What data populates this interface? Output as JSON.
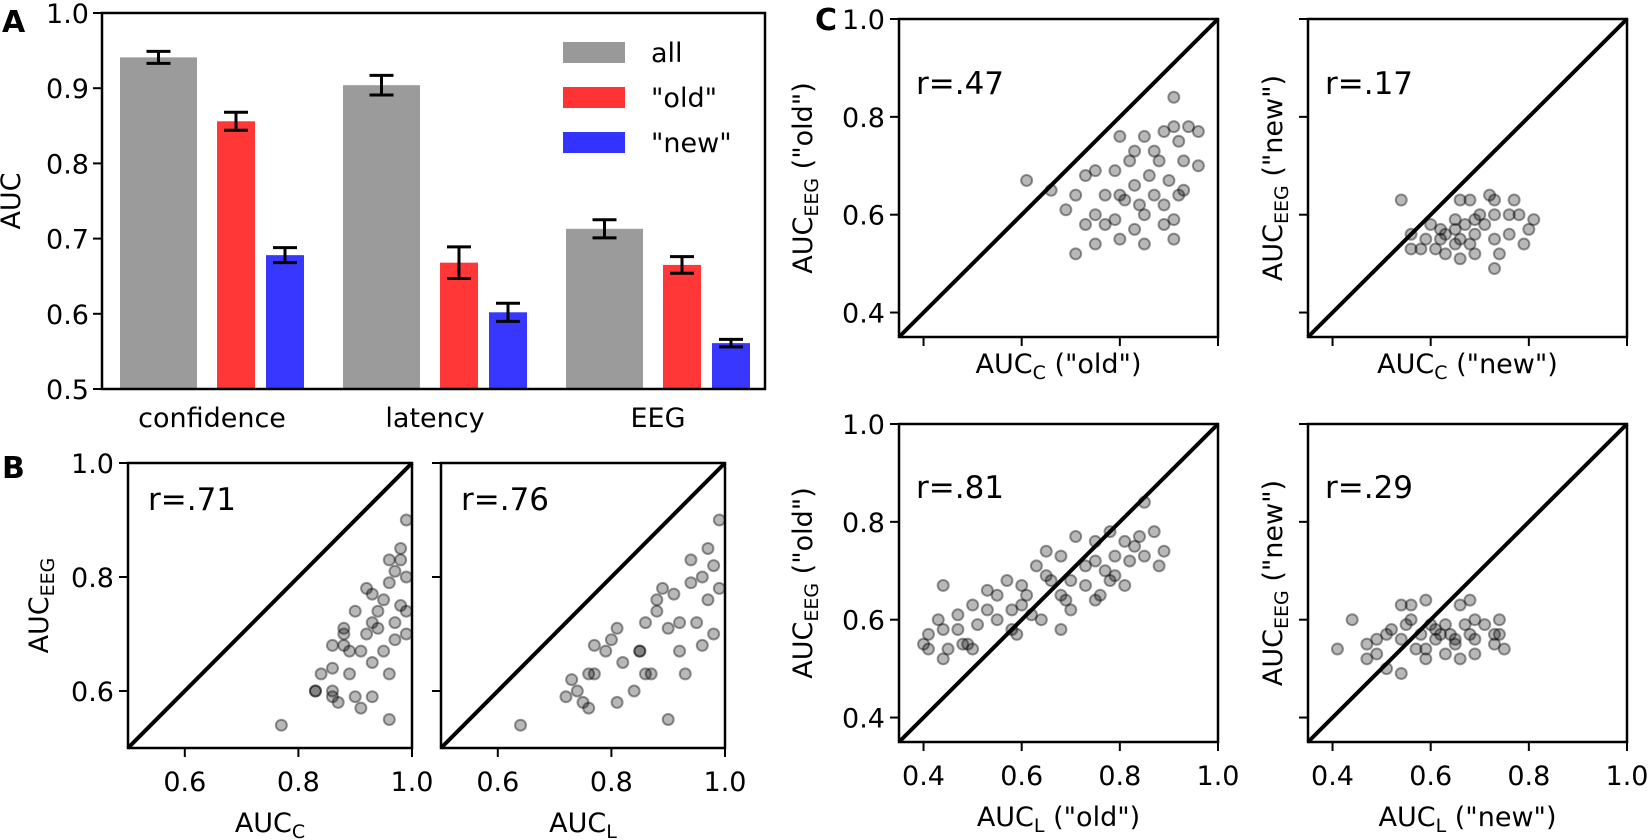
{
  "panels": {
    "A": "A",
    "B": "B",
    "C": "C"
  },
  "chart_data": [
    {
      "id": "A",
      "type": "bar",
      "categories": [
        "confidence",
        "latency",
        "EEG"
      ],
      "series": [
        {
          "name": "all",
          "color": "#999999",
          "values": [
            0.941,
            0.904,
            0.713
          ],
          "errors": [
            0.008,
            0.013,
            0.012
          ]
        },
        {
          "name": "\"old\"",
          "color": "#ff3333",
          "values": [
            0.856,
            0.668,
            0.665
          ],
          "errors": [
            0.012,
            0.021,
            0.011
          ]
        },
        {
          "name": "\"new\"",
          "color": "#3333ff",
          "values": [
            0.678,
            0.602,
            0.561
          ],
          "errors": [
            0.01,
            0.012,
            0.005
          ]
        }
      ],
      "ylabel": "AUC",
      "ylim": [
        0.5,
        1.0
      ],
      "yticks": [
        0.5,
        0.6,
        0.7,
        0.8,
        0.9,
        1.0
      ],
      "ytick_labels": [
        "0.5",
        "0.6",
        "0.7",
        "0.8",
        "0.9",
        "1.0"
      ],
      "legend": "top-right"
    },
    {
      "id": "B1",
      "type": "scatter",
      "r_label": "r=.71",
      "xlabel": {
        "main": "AUC",
        "sub": "C",
        "suffix": ""
      },
      "ylabel": {
        "main": "AUC",
        "sub": "EEG",
        "suffix": ""
      },
      "xlim": [
        0.5,
        1.0
      ],
      "ylim": [
        0.5,
        1.0
      ],
      "xticks": [
        0.6,
        0.8,
        1.0
      ],
      "xtick_labels": [
        "0.6",
        "0.8",
        "1.0"
      ],
      "yticks": [
        0.6,
        0.8,
        1.0
      ],
      "ytick_labels": [
        "0.6",
        "0.8",
        "1.0"
      ],
      "diagonal": true,
      "points": [
        [
          0.77,
          0.54
        ],
        [
          0.83,
          0.6
        ],
        [
          0.83,
          0.6
        ],
        [
          0.86,
          0.59
        ],
        [
          0.86,
          0.6
        ],
        [
          0.87,
          0.58
        ],
        [
          0.84,
          0.63
        ],
        [
          0.86,
          0.64
        ],
        [
          0.86,
          0.68
        ],
        [
          0.88,
          0.68
        ],
        [
          0.88,
          0.7
        ],
        [
          0.88,
          0.71
        ],
        [
          0.89,
          0.63
        ],
        [
          0.9,
          0.59
        ],
        [
          0.91,
          0.57
        ],
        [
          0.93,
          0.59
        ],
        [
          0.96,
          0.55
        ],
        [
          0.96,
          0.63
        ],
        [
          0.95,
          0.67
        ],
        [
          0.93,
          0.65
        ],
        [
          0.91,
          0.67
        ],
        [
          0.9,
          0.74
        ],
        [
          0.92,
          0.78
        ],
        [
          0.93,
          0.77
        ],
        [
          0.95,
          0.76
        ],
        [
          0.96,
          0.83
        ],
        [
          0.98,
          0.85
        ],
        [
          0.99,
          0.9
        ],
        [
          0.97,
          0.72
        ],
        [
          0.98,
          0.75
        ],
        [
          0.99,
          0.8
        ],
        [
          0.99,
          0.7
        ],
        [
          0.97,
          0.69
        ],
        [
          0.94,
          0.71
        ],
        [
          0.93,
          0.72
        ],
        [
          0.97,
          0.81
        ],
        [
          0.98,
          0.83
        ],
        [
          0.99,
          0.74
        ],
        [
          0.96,
          0.79
        ],
        [
          0.94,
          0.74
        ],
        [
          0.92,
          0.7
        ],
        [
          0.89,
          0.67
        ]
      ]
    },
    {
      "id": "B2",
      "type": "scatter",
      "r_label": "r=.76",
      "xlabel": {
        "main": "AUC",
        "sub": "L",
        "suffix": ""
      },
      "ylabel": null,
      "xlim": [
        0.5,
        1.0
      ],
      "ylim": [
        0.5,
        1.0
      ],
      "xticks": [
        0.6,
        0.8,
        1.0
      ],
      "xtick_labels": [
        "0.6",
        "0.8",
        "1.0"
      ],
      "yticks": [
        0.6,
        0.8,
        1.0
      ],
      "ytick_labels": [],
      "diagonal": true,
      "points": [
        [
          0.64,
          0.54
        ],
        [
          0.72,
          0.59
        ],
        [
          0.73,
          0.62
        ],
        [
          0.74,
          0.6
        ],
        [
          0.75,
          0.58
        ],
        [
          0.76,
          0.57
        ],
        [
          0.76,
          0.63
        ],
        [
          0.77,
          0.63
        ],
        [
          0.77,
          0.68
        ],
        [
          0.79,
          0.67
        ],
        [
          0.8,
          0.69
        ],
        [
          0.81,
          0.71
        ],
        [
          0.81,
          0.58
        ],
        [
          0.82,
          0.65
        ],
        [
          0.84,
          0.6
        ],
        [
          0.85,
          0.67
        ],
        [
          0.85,
          0.67
        ],
        [
          0.86,
          0.72
        ],
        [
          0.86,
          0.63
        ],
        [
          0.87,
          0.63
        ],
        [
          0.88,
          0.76
        ],
        [
          0.88,
          0.74
        ],
        [
          0.89,
          0.78
        ],
        [
          0.9,
          0.55
        ],
        [
          0.9,
          0.71
        ],
        [
          0.91,
          0.77
        ],
        [
          0.93,
          0.63
        ],
        [
          0.94,
          0.83
        ],
        [
          0.92,
          0.67
        ],
        [
          0.92,
          0.72
        ],
        [
          0.96,
          0.8
        ],
        [
          0.97,
          0.85
        ],
        [
          0.99,
          0.9
        ],
        [
          0.97,
          0.76
        ],
        [
          0.95,
          0.72
        ],
        [
          0.98,
          0.7
        ],
        [
          0.99,
          0.78
        ],
        [
          0.94,
          0.79
        ],
        [
          0.96,
          0.68
        ],
        [
          0.98,
          0.82
        ]
      ]
    },
    {
      "id": "C1",
      "type": "scatter",
      "r_label": "r=.47",
      "xlabel": {
        "main": "AUC",
        "sub": "C",
        "suffix": " (\"old\")"
      },
      "ylabel": {
        "main": "AUC",
        "sub": "EEG",
        "suffix": "  (\"old\")"
      },
      "xlim": [
        0.35,
        1.0
      ],
      "ylim": [
        0.35,
        1.0
      ],
      "xticks": [
        0.4,
        0.6,
        0.8,
        1.0
      ],
      "xtick_labels": [],
      "yticks": [
        0.4,
        0.6,
        0.8,
        1.0
      ],
      "ytick_labels": [
        "0.4",
        "0.6",
        "0.8",
        "1.0"
      ],
      "diagonal": true,
      "points": [
        [
          0.61,
          0.67
        ],
        [
          0.66,
          0.65
        ],
        [
          0.91,
          0.84
        ],
        [
          0.71,
          0.52
        ],
        [
          0.75,
          0.54
        ],
        [
          0.69,
          0.61
        ],
        [
          0.71,
          0.64
        ],
        [
          0.73,
          0.58
        ],
        [
          0.73,
          0.68
        ],
        [
          0.75,
          0.69
        ],
        [
          0.79,
          0.69
        ],
        [
          0.77,
          0.64
        ],
        [
          0.8,
          0.76
        ],
        [
          0.85,
          0.76
        ],
        [
          0.96,
          0.7
        ],
        [
          0.96,
          0.77
        ],
        [
          0.94,
          0.78
        ],
        [
          0.91,
          0.78
        ],
        [
          0.93,
          0.71
        ],
        [
          0.91,
          0.55
        ],
        [
          0.91,
          0.59
        ],
        [
          0.85,
          0.54
        ],
        [
          0.8,
          0.55
        ],
        [
          0.83,
          0.57
        ],
        [
          0.87,
          0.73
        ],
        [
          0.88,
          0.71
        ],
        [
          0.86,
          0.68
        ],
        [
          0.83,
          0.66
        ],
        [
          0.81,
          0.63
        ],
        [
          0.84,
          0.62
        ],
        [
          0.87,
          0.64
        ],
        [
          0.9,
          0.67
        ],
        [
          0.92,
          0.64
        ],
        [
          0.79,
          0.59
        ],
        [
          0.77,
          0.58
        ],
        [
          0.75,
          0.6
        ],
        [
          0.8,
          0.64
        ],
        [
          0.82,
          0.71
        ],
        [
          0.85,
          0.6
        ],
        [
          0.89,
          0.62
        ],
        [
          0.92,
          0.75
        ],
        [
          0.83,
          0.73
        ],
        [
          0.89,
          0.77
        ],
        [
          0.93,
          0.65
        ],
        [
          0.89,
          0.58
        ]
      ]
    },
    {
      "id": "C2",
      "type": "scatter",
      "r_label": "r=.17",
      "xlabel": {
        "main": "AUC",
        "sub": "C",
        "suffix": " (\"new\")"
      },
      "ylabel": {
        "main": "AUC",
        "sub": "EEG",
        "suffix": " (\"new\")"
      },
      "xlim": [
        0.35,
        1.0
      ],
      "ylim": [
        0.35,
        1.0
      ],
      "xticks": [
        0.4,
        0.6,
        0.8,
        1.0
      ],
      "xtick_labels": [],
      "yticks": [
        0.4,
        0.6,
        0.8,
        1.0
      ],
      "ytick_labels": [],
      "diagonal": true,
      "points": [
        [
          0.54,
          0.63
        ],
        [
          0.56,
          0.56
        ],
        [
          0.56,
          0.53
        ],
        [
          0.58,
          0.53
        ],
        [
          0.61,
          0.53
        ],
        [
          0.6,
          0.58
        ],
        [
          0.63,
          0.52
        ],
        [
          0.66,
          0.51
        ],
        [
          0.69,
          0.52
        ],
        [
          0.73,
          0.49
        ],
        [
          0.74,
          0.52
        ],
        [
          0.72,
          0.64
        ],
        [
          0.73,
          0.63
        ],
        [
          0.77,
          0.63
        ],
        [
          0.76,
          0.6
        ],
        [
          0.78,
          0.6
        ],
        [
          0.81,
          0.59
        ],
        [
          0.8,
          0.57
        ],
        [
          0.79,
          0.54
        ],
        [
          0.76,
          0.56
        ],
        [
          0.66,
          0.63
        ],
        [
          0.68,
          0.63
        ],
        [
          0.65,
          0.59
        ],
        [
          0.63,
          0.56
        ],
        [
          0.66,
          0.55
        ],
        [
          0.69,
          0.56
        ],
        [
          0.71,
          0.58
        ],
        [
          0.7,
          0.6
        ],
        [
          0.73,
          0.55
        ],
        [
          0.68,
          0.54
        ],
        [
          0.65,
          0.54
        ],
        [
          0.62,
          0.55
        ],
        [
          0.62,
          0.57
        ],
        [
          0.67,
          0.58
        ],
        [
          0.73,
          0.6
        ],
        [
          0.69,
          0.59
        ],
        [
          0.65,
          0.57
        ],
        [
          0.59,
          0.55
        ]
      ]
    },
    {
      "id": "C3",
      "type": "scatter",
      "r_label": "r=.81",
      "xlabel": {
        "main": "AUC",
        "sub": "L",
        "suffix": " (\"old\")"
      },
      "ylabel": {
        "main": "AUC",
        "sub": "EEG",
        "suffix": "  (\"old\")"
      },
      "xlim": [
        0.35,
        1.0
      ],
      "ylim": [
        0.35,
        1.0
      ],
      "xticks": [
        0.4,
        0.6,
        0.8,
        1.0
      ],
      "xtick_labels": [
        "0.4",
        "0.6",
        "0.8",
        "1.0"
      ],
      "yticks": [
        0.4,
        0.6,
        0.8,
        1.0
      ],
      "ytick_labels": [
        "0.4",
        "0.6",
        "0.8",
        "1.0"
      ],
      "diagonal": true,
      "points": [
        [
          0.44,
          0.67
        ],
        [
          0.4,
          0.55
        ],
        [
          0.41,
          0.57
        ],
        [
          0.41,
          0.54
        ],
        [
          0.43,
          0.6
        ],
        [
          0.44,
          0.58
        ],
        [
          0.44,
          0.52
        ],
        [
          0.45,
          0.54
        ],
        [
          0.47,
          0.61
        ],
        [
          0.47,
          0.58
        ],
        [
          0.48,
          0.55
        ],
        [
          0.49,
          0.55
        ],
        [
          0.5,
          0.54
        ],
        [
          0.5,
          0.63
        ],
        [
          0.51,
          0.59
        ],
        [
          0.53,
          0.66
        ],
        [
          0.53,
          0.62
        ],
        [
          0.55,
          0.6
        ],
        [
          0.55,
          0.65
        ],
        [
          0.57,
          0.68
        ],
        [
          0.58,
          0.62
        ],
        [
          0.58,
          0.58
        ],
        [
          0.59,
          0.57
        ],
        [
          0.6,
          0.63
        ],
        [
          0.6,
          0.67
        ],
        [
          0.61,
          0.65
        ],
        [
          0.62,
          0.61
        ],
        [
          0.63,
          0.71
        ],
        [
          0.64,
          0.6
        ],
        [
          0.65,
          0.74
        ],
        [
          0.65,
          0.69
        ],
        [
          0.68,
          0.58
        ],
        [
          0.68,
          0.73
        ],
        [
          0.68,
          0.65
        ],
        [
          0.66,
          0.68
        ],
        [
          0.7,
          0.62
        ],
        [
          0.7,
          0.68
        ],
        [
          0.71,
          0.77
        ],
        [
          0.73,
          0.67
        ],
        [
          0.75,
          0.64
        ],
        [
          0.76,
          0.65
        ],
        [
          0.75,
          0.72
        ],
        [
          0.75,
          0.76
        ],
        [
          0.78,
          0.78
        ],
        [
          0.79,
          0.73
        ],
        [
          0.79,
          0.69
        ],
        [
          0.78,
          0.68
        ],
        [
          0.81,
          0.67
        ],
        [
          0.81,
          0.76
        ],
        [
          0.82,
          0.72
        ],
        [
          0.83,
          0.75
        ],
        [
          0.84,
          0.77
        ],
        [
          0.85,
          0.84
        ],
        [
          0.85,
          0.73
        ],
        [
          0.87,
          0.78
        ],
        [
          0.88,
          0.71
        ],
        [
          0.89,
          0.74
        ],
        [
          0.73,
          0.71
        ],
        [
          0.77,
          0.7
        ],
        [
          0.69,
          0.64
        ]
      ]
    },
    {
      "id": "C4",
      "type": "scatter",
      "r_label": "r=.29",
      "xlabel": {
        "main": "AUC",
        "sub": "L",
        "suffix": " (\"new\")"
      },
      "ylabel": {
        "main": "AUC",
        "sub": "EEG",
        "suffix": " (\"new\")"
      },
      "xlim": [
        0.35,
        1.0
      ],
      "ylim": [
        0.35,
        1.0
      ],
      "xticks": [
        0.4,
        0.6,
        0.8,
        1.0
      ],
      "xtick_labels": [
        "0.4",
        "0.6",
        "0.8",
        "1.0"
      ],
      "yticks": [
        0.4,
        0.6,
        0.8,
        1.0
      ],
      "ytick_labels": [],
      "diagonal": true,
      "points": [
        [
          0.41,
          0.54
        ],
        [
          0.44,
          0.6
        ],
        [
          0.47,
          0.52
        ],
        [
          0.47,
          0.55
        ],
        [
          0.49,
          0.56
        ],
        [
          0.49,
          0.53
        ],
        [
          0.51,
          0.5
        ],
        [
          0.51,
          0.57
        ],
        [
          0.52,
          0.58
        ],
        [
          0.54,
          0.63
        ],
        [
          0.56,
          0.63
        ],
        [
          0.54,
          0.49
        ],
        [
          0.56,
          0.6
        ],
        [
          0.55,
          0.59
        ],
        [
          0.54,
          0.56
        ],
        [
          0.57,
          0.54
        ],
        [
          0.59,
          0.64
        ],
        [
          0.59,
          0.52
        ],
        [
          0.61,
          0.58
        ],
        [
          0.61,
          0.56
        ],
        [
          0.63,
          0.53
        ],
        [
          0.63,
          0.59
        ],
        [
          0.65,
          0.56
        ],
        [
          0.66,
          0.63
        ],
        [
          0.66,
          0.52
        ],
        [
          0.67,
          0.59
        ],
        [
          0.68,
          0.64
        ],
        [
          0.68,
          0.57
        ],
        [
          0.69,
          0.6
        ],
        [
          0.69,
          0.53
        ],
        [
          0.71,
          0.59
        ],
        [
          0.73,
          0.57
        ],
        [
          0.73,
          0.55
        ],
        [
          0.74,
          0.6
        ],
        [
          0.74,
          0.57
        ],
        [
          0.75,
          0.54
        ],
        [
          0.58,
          0.57
        ],
        [
          0.62,
          0.57
        ],
        [
          0.65,
          0.55
        ],
        [
          0.69,
          0.56
        ],
        [
          0.6,
          0.59
        ],
        [
          0.64,
          0.57
        ],
        [
          0.59,
          0.54
        ]
      ]
    }
  ]
}
